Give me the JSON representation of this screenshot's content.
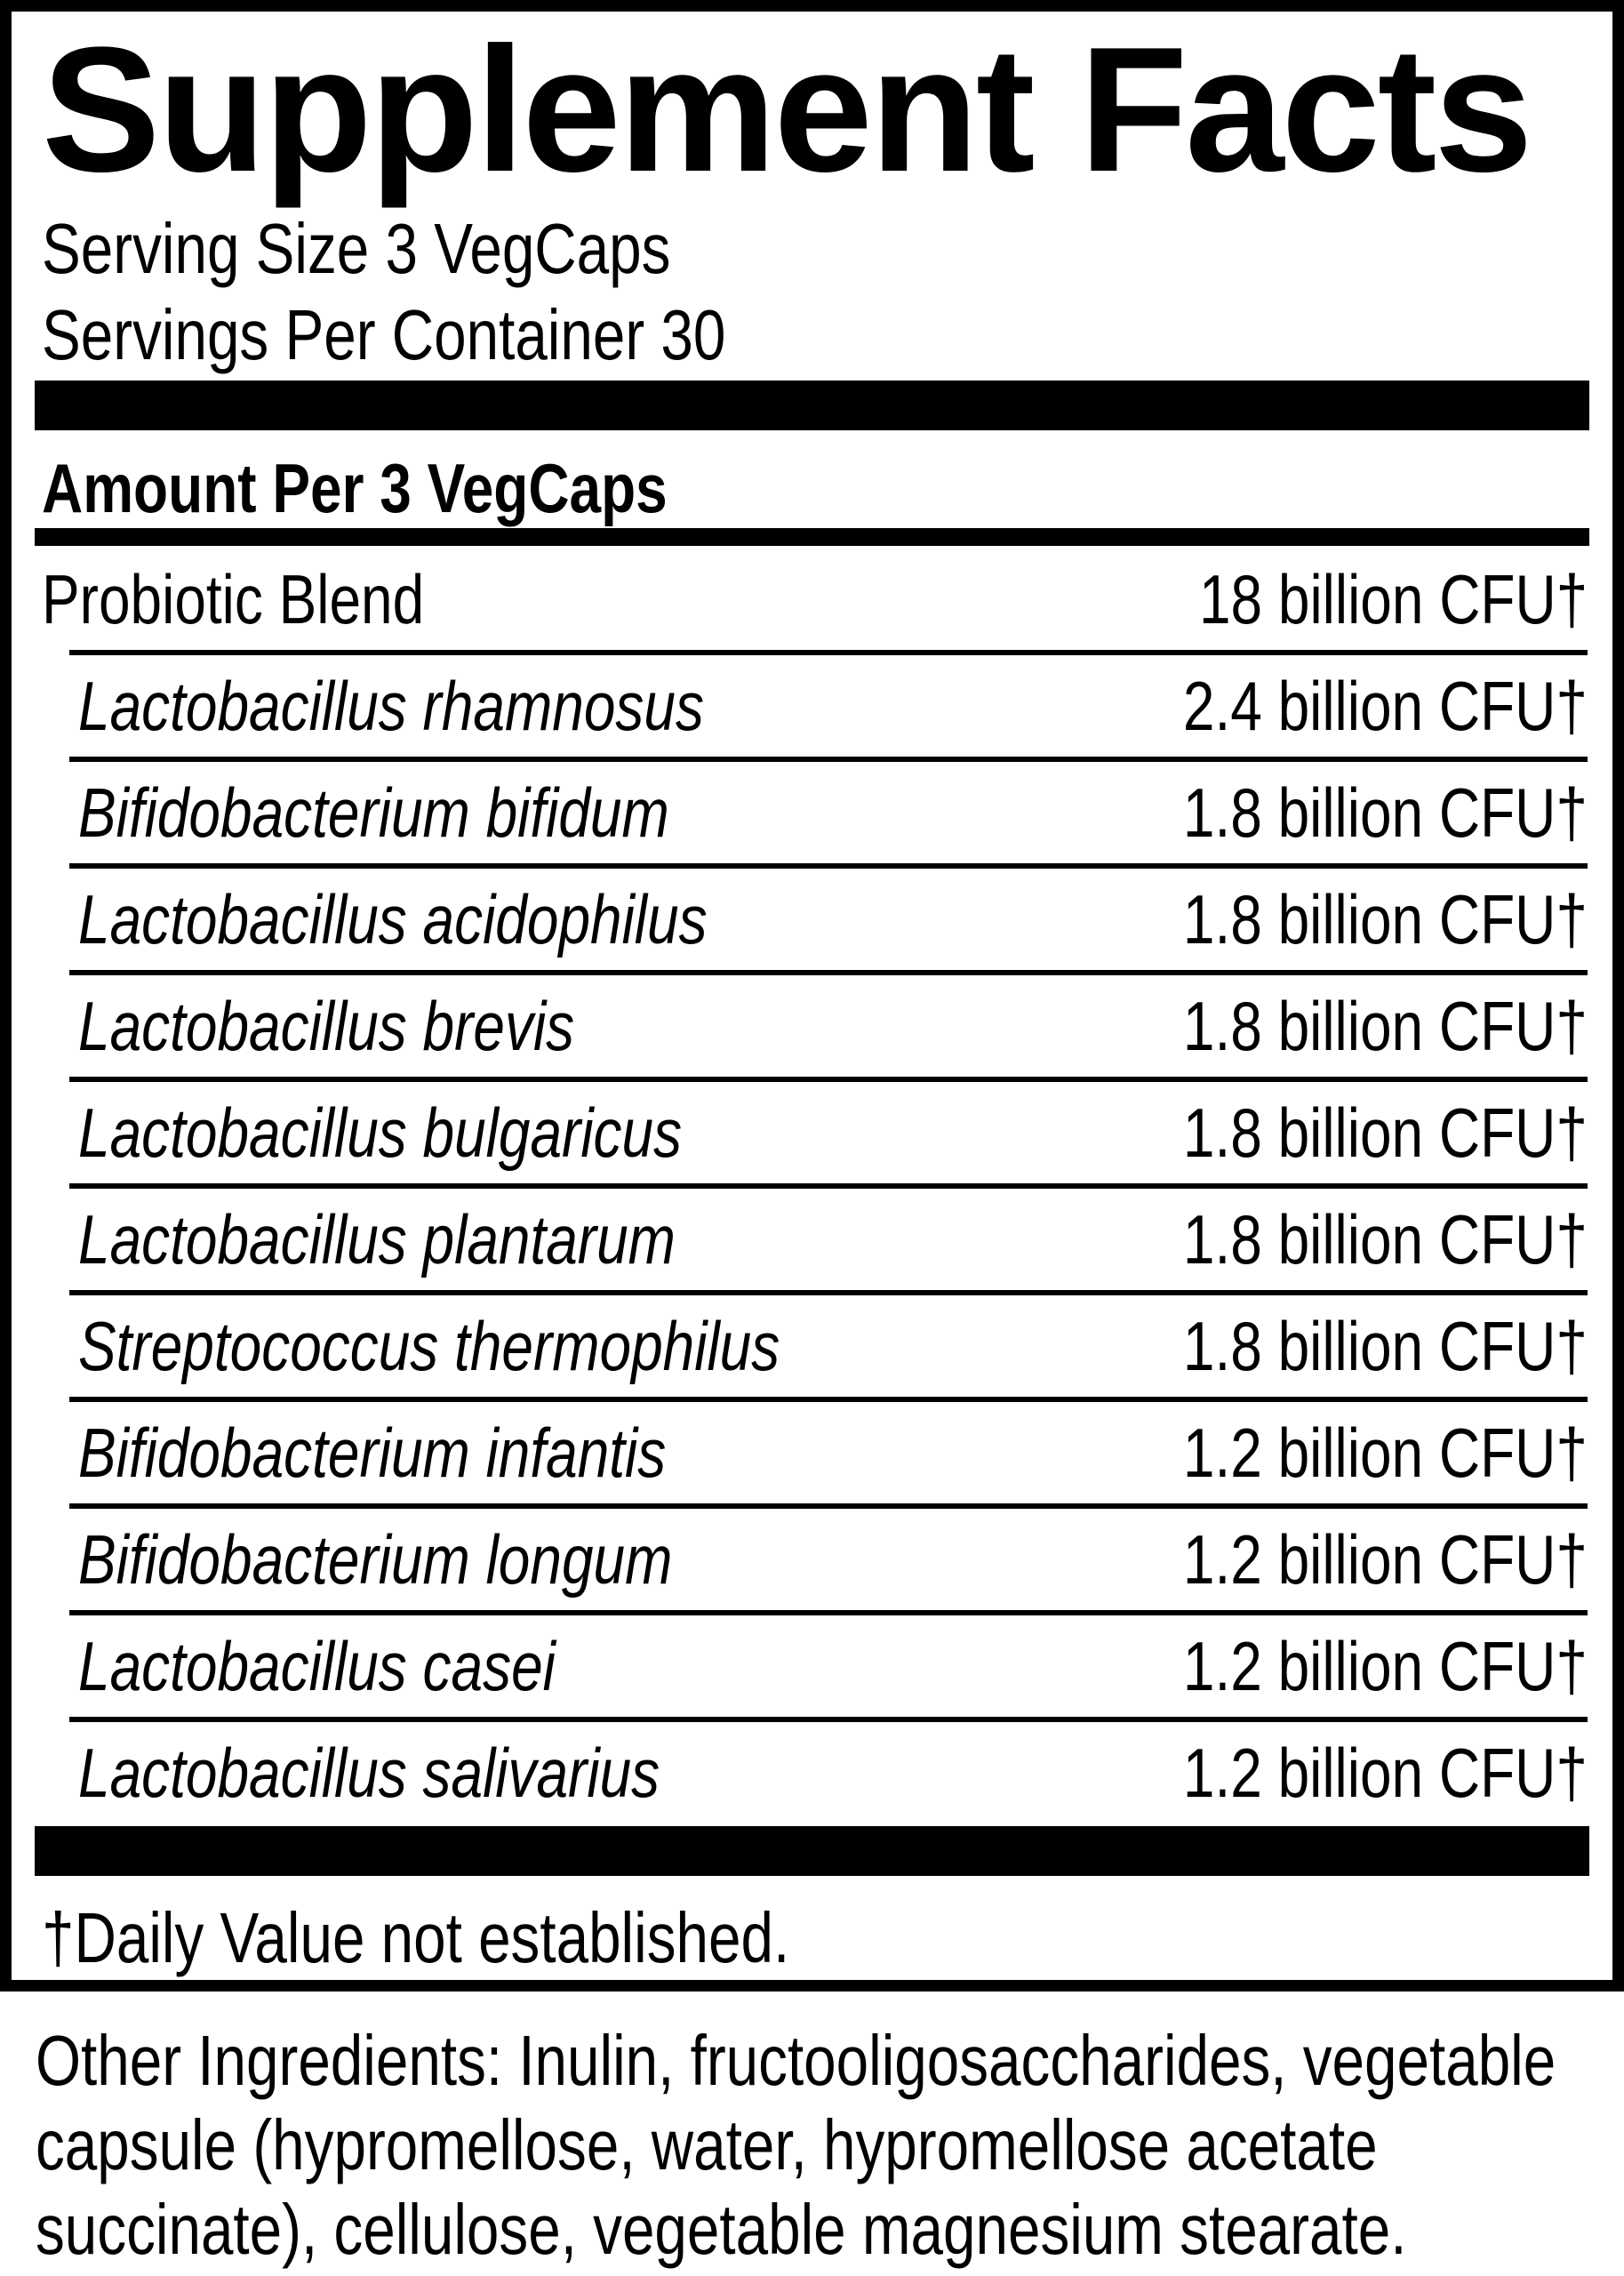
{
  "supplement": {
    "title": "Supplement Facts",
    "serving_size": "Serving Size 3 VegCaps",
    "servings_per_container": "Servings Per Container 30",
    "amount_header": "Amount Per 3 VegCaps",
    "rows": [
      {
        "name": "Probiotic Blend",
        "amount": "18 billion CFU†"
      },
      {
        "name": "Lactobacillus rhamnosus",
        "amount": "2.4 billion CFU†"
      },
      {
        "name": "Bifidobacterium bifidum",
        "amount": "1.8 billion CFU†"
      },
      {
        "name": "Lactobacillus acidophilus",
        "amount": "1.8 billion CFU†"
      },
      {
        "name": "Lactobacillus brevis",
        "amount": "1.8 billion CFU†"
      },
      {
        "name": "Lactobacillus bulgaricus",
        "amount": "1.8 billion CFU†"
      },
      {
        "name": "Lactobacillus plantarum",
        "amount": "1.8 billion CFU†"
      },
      {
        "name": "Streptococcus thermophilus",
        "amount": "1.8 billion CFU†"
      },
      {
        "name": "Bifidobacterium infantis",
        "amount": "1.2 billion CFU†"
      },
      {
        "name": "Bifidobacterium longum",
        "amount": "1.2 billion CFU†"
      },
      {
        "name": "Lactobacillus casei",
        "amount": "1.2 billion CFU†"
      },
      {
        "name": "Lactobacillus salivarius",
        "amount": "1.2 billion CFU†"
      }
    ],
    "footnote": "†Daily Value not established."
  },
  "other_ingredients": {
    "lines": [
      "Other Ingredients: Inulin, fructooligosaccharides, vegetable",
      "capsule (hypromellose, water, hypromellose acetate",
      "succinate), cellulose, vegetable magnesium stearate."
    ]
  },
  "colors": {
    "ink": "#000000",
    "paper": "#ffffff"
  }
}
